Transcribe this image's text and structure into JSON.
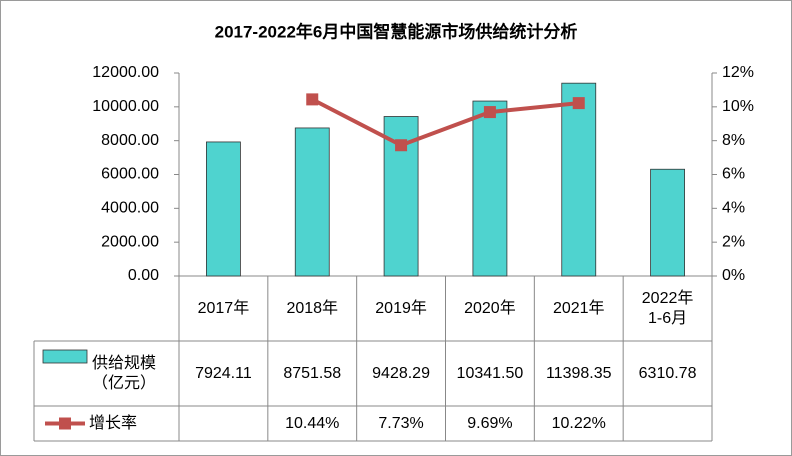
{
  "chart_data": {
    "type": "bar-line-table",
    "title": "2017-2022年6月中国智慧能源市场供给统计分析",
    "categories": [
      "2017年",
      "2018年",
      "2019年",
      "2020年",
      "2021年",
      "2022年1-6月"
    ],
    "series": [
      {
        "name": "供给规模（亿元）",
        "type": "bar",
        "color": "#4fd3cf",
        "values": [
          7924.11,
          8751.58,
          9428.29,
          10341.5,
          11398.35,
          6310.78
        ],
        "value_labels": [
          "7924.11",
          "8751.58",
          "9428.29",
          "10341.50",
          "11398.35",
          "6310.78"
        ]
      },
      {
        "name": "增长率",
        "type": "line",
        "axis": "y2",
        "color": "#c0504d",
        "values": [
          null,
          10.44,
          7.73,
          9.69,
          10.22,
          null
        ],
        "value_labels": [
          null,
          "10.44%",
          "7.73%",
          "9.69%",
          "10.22%",
          null
        ]
      }
    ],
    "ylim": [
      0,
      12000
    ],
    "yticks": [
      {
        "value": 0,
        "label": "0.00"
      },
      {
        "value": 2000,
        "label": "2000.00"
      },
      {
        "value": 4000,
        "label": "4000.00"
      },
      {
        "value": 6000,
        "label": "6000.00"
      },
      {
        "value": 8000,
        "label": "8000.00"
      },
      {
        "value": 10000,
        "label": "10000.00"
      },
      {
        "value": 12000,
        "label": "12000.00"
      }
    ],
    "y2lim": [
      0,
      12
    ],
    "y2ticks": [
      {
        "value": 0,
        "label": "0%"
      },
      {
        "value": 2,
        "label": "2%"
      },
      {
        "value": 4,
        "label": "4%"
      },
      {
        "value": 6,
        "label": "6%"
      },
      {
        "value": 8,
        "label": "8%"
      },
      {
        "value": 10,
        "label": "10%"
      },
      {
        "value": 12,
        "label": "12%"
      }
    ],
    "grid": false
  }
}
